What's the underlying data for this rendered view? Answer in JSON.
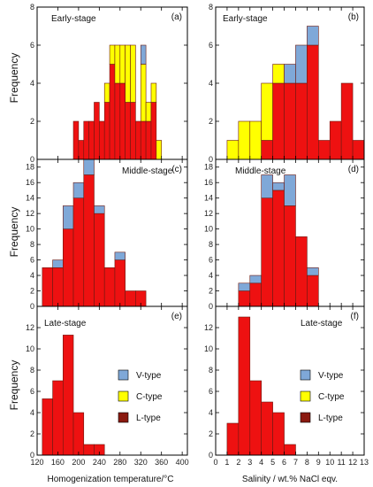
{
  "colors": {
    "v_type": "#7fa8d8",
    "c_type": "#ffff00",
    "l_type": "#ee1111",
    "pink_blend": "#e88fc8",
    "dark_band": "#8a1a10",
    "frame": "#000000"
  },
  "figure": {
    "y_label": "Frequency",
    "x_label_left": "Homogenization temperature/°C",
    "x_label_right": "Salinity / wt.% NaCl eqv."
  },
  "legends": [
    {
      "labels": [
        "V-type",
        "C-type",
        "L-type"
      ]
    },
    {
      "labels": [
        "V-type",
        "C-type",
        "L-type"
      ]
    }
  ],
  "chart_data": [
    {
      "panel": "(a)",
      "stage": "Early-stage",
      "type": "bar",
      "x_ticks": [
        "120",
        "160",
        "200",
        "240",
        "280",
        "320",
        "360",
        "400"
      ],
      "xlim": [
        120,
        410
      ],
      "ylim": [
        0,
        8
      ],
      "y_ticks": [
        "0",
        "2",
        "4",
        "6",
        "8"
      ],
      "bin_width": 10,
      "bins": [
        190,
        200,
        210,
        220,
        230,
        240,
        250,
        260,
        270,
        280,
        290,
        300,
        310,
        320,
        330,
        340,
        350,
        360,
        370,
        380,
        390,
        400
      ],
      "series": [
        {
          "name": "L-type",
          "values": [
            2,
            1,
            2,
            2,
            3,
            2,
            3,
            5,
            4,
            4,
            3,
            3,
            2,
            2,
            2,
            3,
            0,
            0,
            0,
            0,
            0,
            0
          ]
        },
        {
          "name": "C-type",
          "values": [
            0,
            0,
            0,
            0,
            0,
            0,
            1,
            1,
            2,
            2,
            3,
            3,
            0,
            3,
            1,
            1,
            1,
            0,
            0,
            0,
            0,
            0
          ]
        },
        {
          "name": "V-type",
          "values": [
            0,
            0,
            0,
            0,
            0,
            0,
            0,
            0,
            0,
            0,
            0,
            0,
            0,
            1,
            0,
            0,
            0,
            0,
            0,
            0,
            0,
            0
          ]
        }
      ]
    },
    {
      "panel": "(b)",
      "stage": "Early-stage",
      "type": "bar",
      "x_ticks": [
        "0",
        "1",
        "2",
        "3",
        "4",
        "5",
        "6",
        "7",
        "8",
        "9",
        "10",
        "11",
        "12",
        "13"
      ],
      "xlim": [
        0,
        13
      ],
      "ylim": [
        0,
        8
      ],
      "y_ticks": [
        "0",
        "2",
        "4",
        "6",
        "8"
      ],
      "bin_width": 1,
      "bins": [
        1,
        2,
        3,
        4,
        5,
        6,
        7,
        8,
        9,
        10,
        11,
        12
      ],
      "series": [
        {
          "name": "L-type",
          "values": [
            0,
            0,
            0,
            1,
            4,
            4,
            4,
            6,
            1,
            2,
            4,
            1
          ]
        },
        {
          "name": "C-type",
          "values": [
            1,
            2,
            2,
            3,
            1,
            0,
            0,
            0,
            0,
            0,
            0,
            0
          ]
        },
        {
          "name": "V-type",
          "values": [
            0,
            0,
            0,
            0,
            0,
            1,
            2,
            1,
            0,
            0,
            0,
            0
          ]
        }
      ]
    },
    {
      "panel": "(c)",
      "stage": "Middle-stage",
      "type": "bar",
      "x_ticks": [
        "120",
        "160",
        "200",
        "240",
        "280",
        "320",
        "360",
        "400"
      ],
      "xlim": [
        120,
        410
      ],
      "ylim": [
        0,
        19
      ],
      "y_ticks": [
        "0",
        "2",
        "4",
        "6",
        "8",
        "10",
        "12",
        "14",
        "16",
        "18"
      ],
      "bin_width": 20,
      "bins": [
        130,
        150,
        170,
        190,
        210,
        230,
        250,
        270,
        290,
        310
      ],
      "series": [
        {
          "name": "L-type",
          "values": [
            5,
            5,
            10,
            14,
            17,
            12,
            5,
            6,
            2,
            2
          ]
        },
        {
          "name": "C-type",
          "values": [
            0,
            0,
            0,
            0,
            0,
            0,
            0,
            0,
            0,
            0
          ]
        },
        {
          "name": "V-type",
          "values": [
            0,
            1,
            3,
            2,
            2,
            1,
            0,
            1,
            0,
            0
          ]
        }
      ]
    },
    {
      "panel": "(d)",
      "stage": "Middle-stage",
      "type": "bar",
      "x_ticks": [
        "0",
        "1",
        "2",
        "3",
        "4",
        "5",
        "6",
        "7",
        "8",
        "9",
        "10",
        "11",
        "12",
        "13"
      ],
      "xlim": [
        0,
        13
      ],
      "ylim": [
        0,
        19
      ],
      "y_ticks": [
        "0",
        "2",
        "4",
        "6",
        "8",
        "10",
        "12",
        "14",
        "16",
        "18"
      ],
      "bin_width": 1,
      "bins": [
        2,
        3,
        4,
        5,
        6,
        7,
        8
      ],
      "series": [
        {
          "name": "L-type",
          "values": [
            2,
            3,
            14,
            15,
            13,
            9,
            4
          ]
        },
        {
          "name": "C-type",
          "values": [
            0,
            0,
            0,
            0,
            0,
            0,
            0
          ]
        },
        {
          "name": "V-type",
          "values": [
            1,
            1,
            3,
            1,
            4,
            0,
            1
          ]
        }
      ]
    },
    {
      "panel": "(e)",
      "stage": "Late-stage",
      "type": "bar",
      "x_ticks": [
        "120",
        "160",
        "200",
        "240",
        "280",
        "320",
        "360",
        "400"
      ],
      "xlim": [
        120,
        410
      ],
      "ylim": [
        0,
        14
      ],
      "y_ticks": [
        "0",
        "2",
        "4",
        "6",
        "8",
        "10",
        "12"
      ],
      "bin_width": 20,
      "bins": [
        130,
        150,
        170,
        190,
        210,
        230
      ],
      "series": [
        {
          "name": "L-type",
          "values": [
            5.3,
            7,
            11.3,
            4,
            1,
            1
          ]
        },
        {
          "name": "C-type",
          "values": [
            0,
            0,
            0,
            0,
            0,
            0
          ]
        },
        {
          "name": "V-type",
          "values": [
            0,
            0,
            0,
            0,
            0,
            0
          ]
        }
      ]
    },
    {
      "panel": "(f)",
      "stage": "Late-stage",
      "type": "bar",
      "x_ticks": [
        "0",
        "1",
        "2",
        "3",
        "4",
        "5",
        "6",
        "7",
        "8",
        "9",
        "10",
        "11",
        "12",
        "13"
      ],
      "xlim": [
        0,
        13
      ],
      "ylim": [
        0,
        14
      ],
      "y_ticks": [
        "0",
        "2",
        "4",
        "6",
        "8",
        "10",
        "12"
      ],
      "bin_width": 1,
      "bins": [
        1,
        2,
        3,
        4,
        5,
        6
      ],
      "series": [
        {
          "name": "L-type",
          "values": [
            3,
            13,
            7,
            5,
            4,
            1
          ]
        },
        {
          "name": "C-type",
          "values": [
            0,
            0,
            0,
            0,
            0,
            0
          ]
        },
        {
          "name": "V-type",
          "values": [
            0,
            0,
            0,
            0,
            0,
            0
          ]
        }
      ]
    }
  ]
}
